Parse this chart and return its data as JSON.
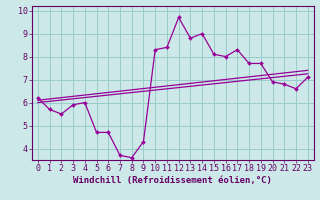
{
  "x": [
    0,
    1,
    2,
    3,
    4,
    5,
    6,
    7,
    8,
    9,
    10,
    11,
    12,
    13,
    14,
    15,
    16,
    17,
    18,
    19,
    20,
    21,
    22,
    23
  ],
  "y_main": [
    6.2,
    5.7,
    5.5,
    5.9,
    6.0,
    4.7,
    4.7,
    3.7,
    3.6,
    4.3,
    8.3,
    8.4,
    9.7,
    8.8,
    9.0,
    8.1,
    8.0,
    8.3,
    7.7,
    7.7,
    6.9,
    6.8,
    6.6,
    7.1
  ],
  "trend1_start": 6.1,
  "trend1_end": 7.4,
  "trend2_start": 6.0,
  "trend2_end": 7.25,
  "line_color": "#990099",
  "bg_color": "#cce8e8",
  "grid_color": "#99cccc",
  "text_color": "#660066",
  "xlabel": "Windchill (Refroidissement éolien,°C)",
  "xlabel_fontsize": 6.5,
  "tick_fontsize": 6,
  "ylim": [
    3.5,
    10.2
  ],
  "xlim": [
    -0.5,
    23.5
  ],
  "yticks": [
    4,
    5,
    6,
    7,
    8,
    9,
    10
  ],
  "xticks": [
    0,
    1,
    2,
    3,
    4,
    5,
    6,
    7,
    8,
    9,
    10,
    11,
    12,
    13,
    14,
    15,
    16,
    17,
    18,
    19,
    20,
    21,
    22,
    23
  ]
}
